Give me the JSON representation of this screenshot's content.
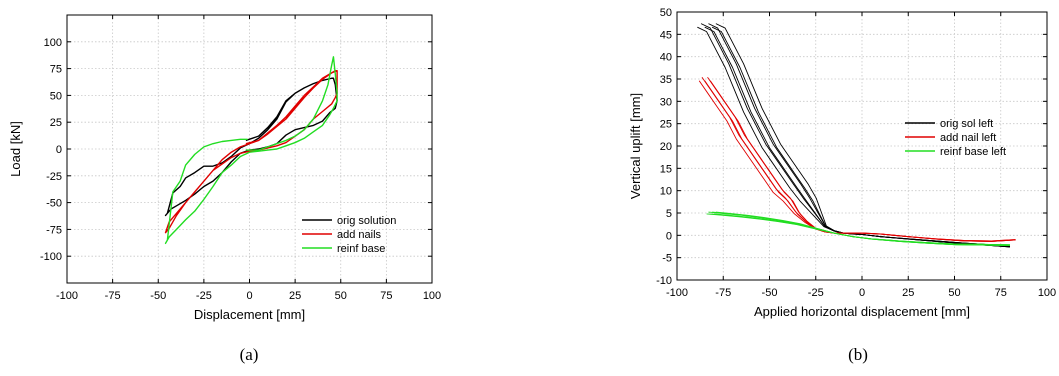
{
  "chart_data": [
    {
      "type": "line",
      "caption": "(a)",
      "xlabel": "Displacement [mm]",
      "ylabel": "Load [kN]",
      "xlim": [
        -100,
        100
      ],
      "ylim": [
        -125,
        125
      ],
      "xticks": [
        -100,
        -75,
        -50,
        -25,
        0,
        25,
        50,
        75,
        100
      ],
      "yticks": [
        -100,
        -75,
        -50,
        -25,
        0,
        25,
        50,
        75,
        100
      ],
      "grid": true,
      "legend_position": "bottom-right",
      "series": [
        {
          "name": "orig solution",
          "color": "#000000",
          "x": [
            -2,
            5,
            10,
            15,
            20,
            25,
            30,
            35,
            40,
            45,
            46,
            47,
            48,
            47,
            44,
            40,
            35,
            30,
            25,
            20,
            15,
            10,
            5,
            0,
            -5,
            -10,
            -15,
            -20,
            -25,
            -30,
            -35,
            -40,
            -43,
            -45,
            -46,
            -45,
            -42,
            -38,
            -35,
            -30,
            -25,
            -20,
            -15,
            -10,
            -5,
            0,
            5,
            10,
            15,
            20,
            25,
            30,
            35,
            40,
            45,
            46
          ],
          "y": [
            8,
            12,
            20,
            30,
            45,
            52,
            57,
            61,
            64,
            66,
            66,
            60,
            45,
            38,
            34,
            26,
            22,
            20,
            18,
            13,
            5,
            2,
            0,
            -1,
            -4,
            -12,
            -22,
            -30,
            -35,
            -42,
            -48,
            -53,
            -56,
            -60,
            -62,
            -60,
            -41,
            -35,
            -27,
            -22,
            -16,
            -16,
            -13,
            -7,
            1,
            5,
            10,
            18,
            28,
            44,
            52,
            57,
            61,
            64,
            66,
            66
          ]
        },
        {
          "name": "add nails",
          "color": "#e00000",
          "x": [
            -2,
            5,
            10,
            15,
            20,
            25,
            30,
            35,
            40,
            45,
            47,
            48,
            48,
            47,
            45,
            40,
            35,
            30,
            25,
            20,
            15,
            10,
            5,
            0,
            -5,
            -10,
            -20,
            -25,
            -30,
            -35,
            -40,
            -44,
            -46,
            -45,
            -44,
            -40,
            -35,
            -30,
            -25,
            -20,
            -15,
            -10,
            -5,
            0,
            5,
            10,
            15,
            20,
            25,
            30,
            35,
            40,
            45,
            48
          ],
          "y": [
            5,
            8,
            15,
            22,
            30,
            40,
            50,
            58,
            66,
            71,
            73,
            73,
            52,
            48,
            42,
            35,
            28,
            18,
            12,
            6,
            3,
            1,
            -1,
            -2,
            -4,
            -8,
            -20,
            -30,
            -40,
            -50,
            -60,
            -68,
            -78,
            -76,
            -74,
            -62,
            -50,
            -40,
            -30,
            -20,
            -10,
            -3,
            2,
            5,
            8,
            14,
            21,
            28,
            38,
            48,
            57,
            65,
            71,
            73
          ]
        },
        {
          "name": "reinf base",
          "color": "#22dd22",
          "x": [
            -2,
            5,
            10,
            15,
            20,
            25,
            30,
            35,
            40,
            43,
            45,
            46,
            47,
            48,
            48,
            46,
            44,
            40,
            35,
            30,
            25,
            20,
            15,
            10,
            5,
            0,
            -5,
            -10,
            -15,
            -20,
            -25,
            -30,
            -35,
            -40,
            -44,
            -46,
            -45,
            -44,
            -42,
            -38,
            -35,
            -30,
            -25,
            -20,
            -15,
            -10,
            -5,
            -1
          ],
          "y": [
            -1,
            -1,
            2,
            5,
            8,
            12,
            18,
            28,
            45,
            60,
            78,
            86,
            70,
            52,
            45,
            38,
            32,
            22,
            16,
            10,
            6,
            3,
            0,
            -1,
            -2,
            -3,
            -7,
            -15,
            -22,
            -35,
            -47,
            -58,
            -66,
            -75,
            -82,
            -88,
            -85,
            -70,
            -40,
            -30,
            -15,
            -5,
            2,
            5,
            7,
            8,
            9,
            9
          ]
        }
      ]
    },
    {
      "type": "line",
      "caption": "(b)",
      "xlabel": "Applied horizontal displacement [mm]",
      "ylabel": "Vertical uplift [mm]",
      "xlim": [
        -100,
        100
      ],
      "ylim": [
        -10,
        50
      ],
      "xticks": [
        -100,
        -75,
        -50,
        -25,
        0,
        25,
        50,
        75,
        100
      ],
      "yticks": [
        -10,
        -5,
        0,
        5,
        10,
        15,
        20,
        25,
        30,
        35,
        40,
        45,
        50
      ],
      "grid": true,
      "legend_position": "top-right",
      "series": [
        {
          "name": "orig sol left",
          "color": "#000000",
          "x": [
            -85,
            -80,
            -75,
            -70,
            -65,
            -60,
            -55,
            -50,
            -45,
            -40,
            -35,
            -30,
            -25,
            -20,
            -15,
            -10,
            -5,
            0,
            10,
            25,
            40,
            55,
            70,
            80
          ],
          "y": [
            47,
            46,
            42,
            38,
            33,
            28,
            24,
            20,
            17,
            14,
            11,
            8,
            5,
            2,
            1,
            0.5,
            0.3,
            0.2,
            -0.3,
            -0.8,
            -1.3,
            -1.8,
            -2.2,
            -2.5
          ],
          "bundle_offsets_x": [
            -4,
            -2,
            0,
            2,
            4,
            6
          ]
        },
        {
          "name": "add nail left",
          "color": "#e00000",
          "x": [
            -85,
            -80,
            -75,
            -70,
            -65,
            -60,
            -55,
            -50,
            -45,
            -40,
            -35,
            -30,
            -25,
            -20,
            -15,
            -10,
            0,
            10,
            25,
            40,
            55,
            70,
            83
          ],
          "y": [
            35,
            32,
            29,
            26,
            22,
            19,
            16,
            13,
            10,
            8,
            5,
            3,
            1.5,
            0.8,
            0.5,
            0.5,
            0.5,
            0.3,
            -0.3,
            -0.8,
            -1.2,
            -1.3,
            -1
          ],
          "bundle_offsets_x": [
            -3,
            -1.5,
            0,
            1.5,
            3
          ]
        },
        {
          "name": "reinf base left",
          "color": "#22dd22",
          "x": [
            -83,
            -75,
            -65,
            -55,
            -45,
            -35,
            -25,
            -15,
            -5,
            5,
            20,
            35,
            50,
            65,
            80
          ],
          "y": [
            5,
            4.7,
            4.3,
            3.8,
            3.2,
            2.5,
            1.5,
            0.5,
            -0.3,
            -0.8,
            -1.3,
            -1.7,
            -2,
            -2.1,
            -2.2
          ],
          "bundle_offsets_x": [
            -2,
            0,
            2,
            4,
            6,
            8
          ]
        }
      ]
    }
  ]
}
